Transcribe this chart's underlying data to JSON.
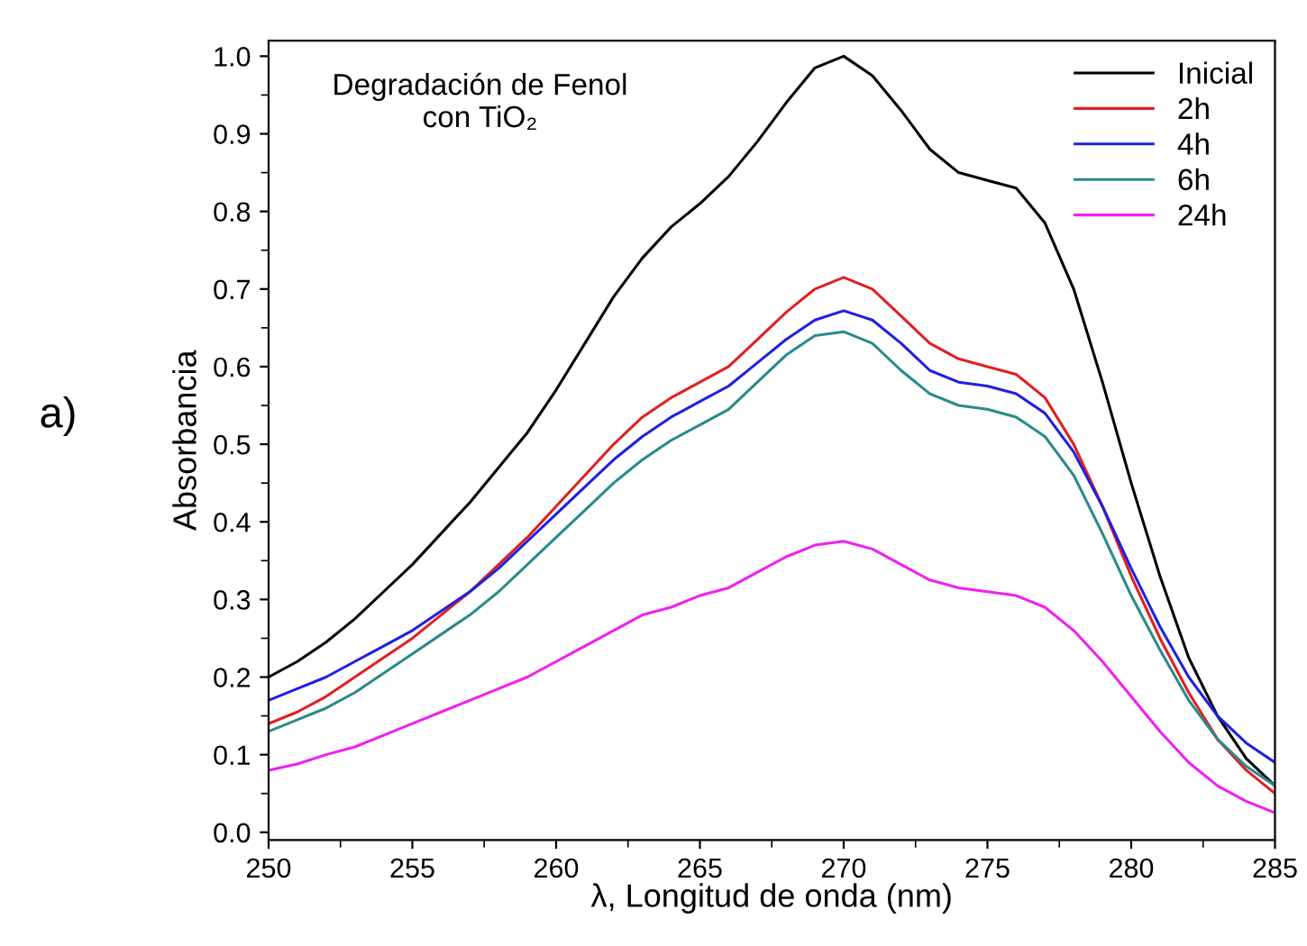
{
  "chart_data": {
    "type": "line",
    "title": "Degradación de Fenol\ncon TiO₂",
    "xlabel": "λ, Longitud de onda (nm)",
    "ylabel": "Absorbancia",
    "annotations": [
      "a)"
    ],
    "x": [
      250,
      251,
      252,
      253,
      254,
      255,
      256,
      257,
      258,
      259,
      260,
      261,
      262,
      263,
      264,
      265,
      266,
      267,
      268,
      269,
      270,
      271,
      272,
      273,
      274,
      275,
      276,
      277,
      278,
      279,
      280,
      281,
      282,
      283,
      284,
      285
    ],
    "series": [
      {
        "name": "Inicial",
        "color": "#000000",
        "values": [
          0.2,
          0.22,
          0.245,
          0.275,
          0.31,
          0.345,
          0.385,
          0.425,
          0.47,
          0.515,
          0.57,
          0.63,
          0.69,
          0.74,
          0.78,
          0.81,
          0.845,
          0.89,
          0.94,
          0.985,
          1.0,
          0.975,
          0.93,
          0.88,
          0.85,
          0.84,
          0.83,
          0.785,
          0.7,
          0.58,
          0.45,
          0.33,
          0.225,
          0.15,
          0.095,
          0.06
        ]
      },
      {
        "name": "2h",
        "color": "#e02020",
        "values": [
          0.14,
          0.155,
          0.175,
          0.2,
          0.225,
          0.25,
          0.28,
          0.31,
          0.345,
          0.38,
          0.42,
          0.46,
          0.5,
          0.535,
          0.56,
          0.58,
          0.6,
          0.635,
          0.67,
          0.7,
          0.715,
          0.7,
          0.665,
          0.63,
          0.61,
          0.6,
          0.59,
          0.56,
          0.5,
          0.42,
          0.33,
          0.25,
          0.18,
          0.12,
          0.08,
          0.05
        ]
      },
      {
        "name": "4h",
        "color": "#2020e0",
        "values": [
          0.17,
          0.185,
          0.2,
          0.22,
          0.24,
          0.26,
          0.285,
          0.31,
          0.34,
          0.375,
          0.41,
          0.445,
          0.48,
          0.51,
          0.535,
          0.555,
          0.575,
          0.605,
          0.635,
          0.66,
          0.672,
          0.66,
          0.63,
          0.595,
          0.58,
          0.575,
          0.565,
          0.54,
          0.49,
          0.42,
          0.34,
          0.265,
          0.2,
          0.15,
          0.115,
          0.09
        ]
      },
      {
        "name": "6h",
        "color": "#2a8a8a",
        "values": [
          0.13,
          0.145,
          0.16,
          0.18,
          0.205,
          0.23,
          0.255,
          0.28,
          0.31,
          0.345,
          0.38,
          0.415,
          0.45,
          0.48,
          0.505,
          0.525,
          0.545,
          0.58,
          0.615,
          0.64,
          0.645,
          0.63,
          0.595,
          0.565,
          0.55,
          0.545,
          0.535,
          0.51,
          0.46,
          0.385,
          0.305,
          0.235,
          0.17,
          0.12,
          0.085,
          0.06
        ]
      },
      {
        "name": "24h",
        "color": "#f020f0",
        "values": [
          0.08,
          0.088,
          0.1,
          0.11,
          0.125,
          0.14,
          0.155,
          0.17,
          0.185,
          0.2,
          0.22,
          0.24,
          0.26,
          0.28,
          0.29,
          0.305,
          0.315,
          0.335,
          0.355,
          0.37,
          0.375,
          0.365,
          0.345,
          0.325,
          0.315,
          0.31,
          0.305,
          0.29,
          0.26,
          0.22,
          0.175,
          0.13,
          0.09,
          0.06,
          0.04,
          0.025
        ]
      }
    ],
    "xlim": [
      250,
      285
    ],
    "xticks": [
      250,
      255,
      260,
      265,
      270,
      275,
      280,
      285
    ],
    "ylim": [
      -0.01,
      1.02
    ],
    "yticks": [
      {
        "value": 0,
        "label": "0.0"
      },
      {
        "value": 0.1,
        "label": "0.1"
      },
      {
        "value": 0.2,
        "label": "0.2"
      },
      {
        "value": 0.3,
        "label": "0.3"
      },
      {
        "value": 0.4,
        "label": "0.4"
      },
      {
        "value": 0.5,
        "label": "0.5"
      },
      {
        "value": 0.6,
        "label": "0.6"
      },
      {
        "value": 0.7,
        "label": "0.7"
      },
      {
        "value": 0.8,
        "label": "0.8"
      },
      {
        "value": 0.9,
        "label": "0.9"
      },
      {
        "value": 1.0,
        "label": "1.0"
      }
    ],
    "legend": "top right",
    "grid": false,
    "marker": "none",
    "line_style": "solid"
  }
}
